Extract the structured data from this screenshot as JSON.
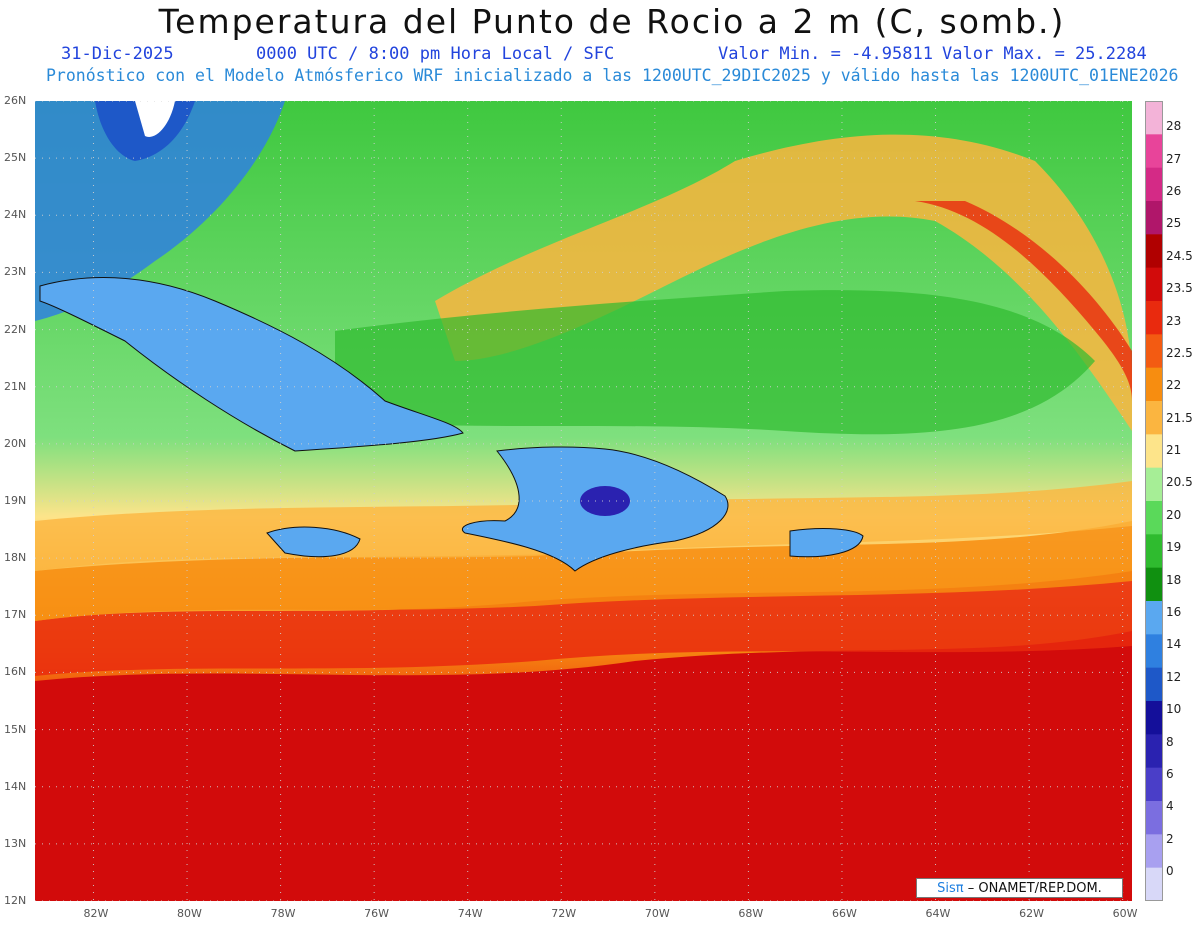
{
  "header": {
    "title": "Temperatura del Punto de Rocio a 2 m (C, somb.)",
    "date": "31-Dic-2025",
    "time": "0000 UTC / 8:00 pm Hora Local / SFC",
    "min": "Valor Min. = -4.95811",
    "max": "Valor Max. = 25.2284",
    "model": "Pronóstico con el Modelo Atmósferico WRF inicializado a las 1200UTC_29DIC2025 y válido hasta las  1200UTC_01ENE2026"
  },
  "axes": {
    "lat_labels": [
      "26N",
      "25N",
      "24N",
      "23N",
      "22N",
      "21N",
      "20N",
      "19N",
      "18N",
      "17N",
      "16N",
      "15N",
      "14N",
      "13N",
      "12N"
    ],
    "lat_values": [
      26,
      25,
      24,
      23,
      22,
      21,
      20,
      19,
      18,
      17,
      16,
      15,
      14,
      13,
      12
    ],
    "lon_labels": [
      "82W",
      "80W",
      "78W",
      "76W",
      "74W",
      "72W",
      "70W",
      "68W",
      "66W",
      "64W",
      "62W",
      "60W"
    ],
    "lon_values": [
      -82,
      -80,
      -78,
      -76,
      -74,
      -72,
      -70,
      -68,
      -66,
      -64,
      -62,
      -60
    ],
    "lat_range": [
      12,
      26
    ],
    "lon_range": [
      -83.25,
      -59.8
    ]
  },
  "legend": {
    "labels": [
      "28",
      "27",
      "26",
      "25",
      "24.5",
      "23.5",
      "23",
      "22.5",
      "22",
      "21.5",
      "21",
      "20.5",
      "20",
      "19",
      "18",
      "16",
      "14",
      "12",
      "10",
      "8",
      "6",
      "4",
      "2",
      "0"
    ],
    "colors": [
      "#f3b3d8",
      "#e8449a",
      "#d42a86",
      "#b0166a",
      "#b00000",
      "#d20b0b",
      "#e92a0e",
      "#f35b12",
      "#f78d10",
      "#fbb540",
      "#fde48a",
      "#a6ee96",
      "#5ad95a",
      "#2fbb2f",
      "#109010",
      "#5aa8f0",
      "#2f80e0",
      "#1e58c8",
      "#140f9a",
      "#2a22b0",
      "#4a3ec8",
      "#7b6ee0",
      "#a8a0f0",
      "#d8d8f8"
    ]
  },
  "credit": {
    "sis": "Sisπ",
    "org": "– ONAMET/REP.DOM."
  }
}
